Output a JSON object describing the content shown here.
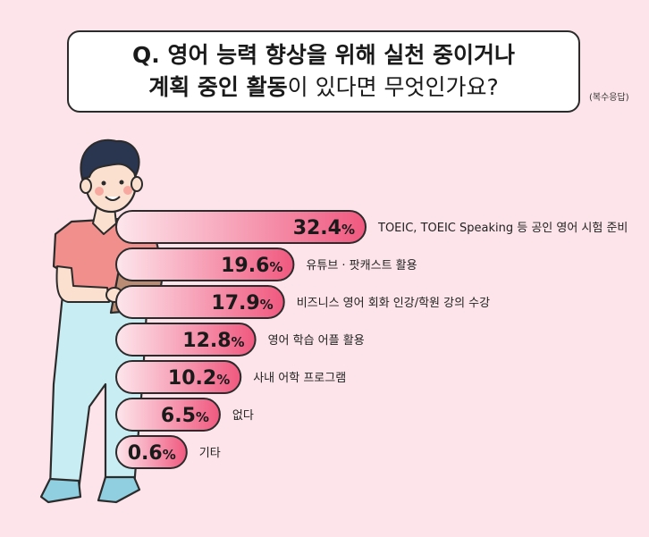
{
  "title": {
    "line1": "Q. 영어 능력 향상을 위해 실천 중이거나",
    "line2_bold": "계획 중인 활동",
    "line2_rest": "이 있다면 무엇인가요?"
  },
  "note": "(복수응답)",
  "colors": {
    "background": "#fce4ea",
    "bar_dark": "#f0587f",
    "bar_light": "#fde6ec",
    "outline": "#2b2b2b"
  },
  "chart_data": {
    "type": "bar",
    "orientation": "horizontal",
    "categories": [
      "TOEIC, TOEIC Speaking 등 공인 영어 시험 준비",
      "유튜브 · 팟캐스트 활용",
      "비즈니스 영어 회화 인강/학원 강의 수강",
      "영어 학습 어플 활용",
      "사내 어학 프로그램",
      "없다",
      "기타"
    ],
    "values": [
      32.4,
      19.6,
      17.9,
      12.8,
      10.2,
      6.5,
      0.6
    ],
    "unit": "%"
  }
}
